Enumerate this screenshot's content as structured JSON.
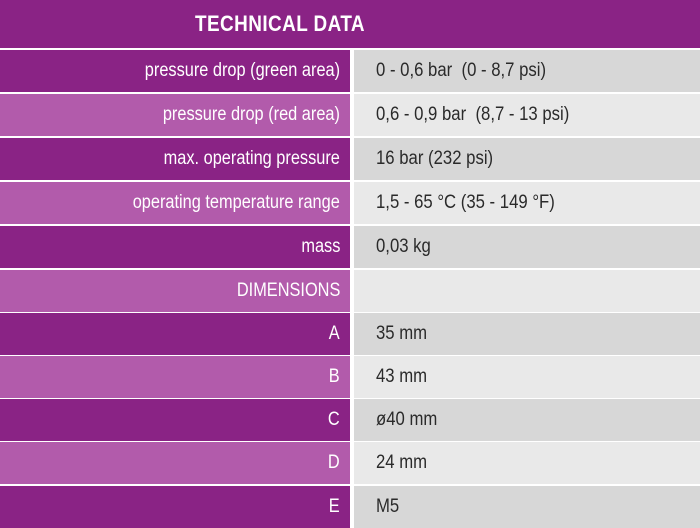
{
  "title": "TECHNICAL DATA",
  "rows": [
    {
      "label": "pressure drop (green area)",
      "value": "0 - 0,6 bar  (0 - 8,7 psi)"
    },
    {
      "label": "pressure drop (red area)",
      "value": "0,6 - 0,9 bar  (8,7 - 13 psi)"
    },
    {
      "label": "max. operating pressure",
      "value": "16 bar (232 psi)"
    },
    {
      "label": "operating temperature range",
      "value": "1,5 - 65 °C (35 - 149 °F)"
    },
    {
      "label": "mass",
      "value": "0,03 kg"
    },
    {
      "label": "DIMENSIONS",
      "value": ""
    },
    {
      "label": "A",
      "value": "35 mm"
    },
    {
      "label": "B",
      "value": "43 mm"
    },
    {
      "label": "C",
      "value": "ø40 mm"
    },
    {
      "label": "D",
      "value": "24 mm"
    },
    {
      "label": "E",
      "value": "M5"
    }
  ],
  "colors": {
    "header": "#8a2385",
    "label_dark": "#8a2385",
    "label_light": "#b25bab",
    "value_dark": "#d7d7d7",
    "value_light": "#e9e9e9"
  }
}
